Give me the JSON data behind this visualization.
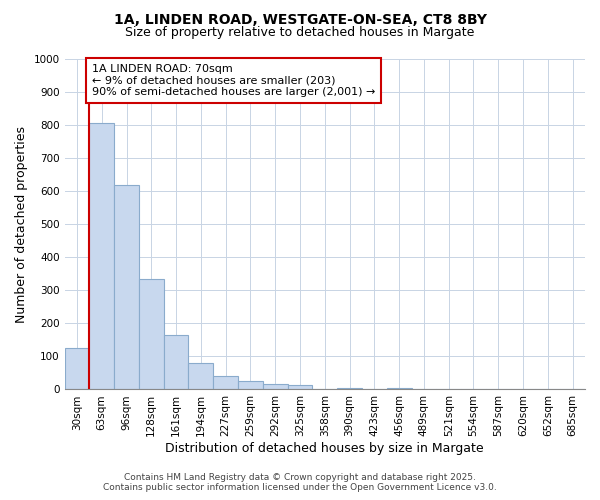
{
  "title_line1": "1A, LINDEN ROAD, WESTGATE-ON-SEA, CT8 8BY",
  "title_line2": "Size of property relative to detached houses in Margate",
  "xlabel": "Distribution of detached houses by size in Margate",
  "ylabel": "Number of detached properties",
  "bar_color": "#c8d8ee",
  "bar_edge_color": "#8aabcc",
  "grid_color": "#c8d4e4",
  "background_color": "#ffffff",
  "bins": [
    "30sqm",
    "63sqm",
    "96sqm",
    "128sqm",
    "161sqm",
    "194sqm",
    "227sqm",
    "259sqm",
    "292sqm",
    "325sqm",
    "358sqm",
    "390sqm",
    "423sqm",
    "456sqm",
    "489sqm",
    "521sqm",
    "554sqm",
    "587sqm",
    "620sqm",
    "652sqm",
    "685sqm"
  ],
  "values": [
    125,
    805,
    620,
    335,
    165,
    80,
    40,
    27,
    18,
    13,
    0,
    5,
    0,
    5,
    0,
    0,
    0,
    0,
    0,
    0,
    0
  ],
  "ylim": [
    0,
    1000
  ],
  "yticks": [
    0,
    100,
    200,
    300,
    400,
    500,
    600,
    700,
    800,
    900,
    1000
  ],
  "property_line_color": "#cc0000",
  "annotation_text": "1A LINDEN ROAD: 70sqm\n← 9% of detached houses are smaller (203)\n90% of semi-detached houses are larger (2,001) →",
  "annotation_box_facecolor": "#ffffff",
  "annotation_box_edgecolor": "#cc0000",
  "footnote_line1": "Contains HM Land Registry data © Crown copyright and database right 2025.",
  "footnote_line2": "Contains public sector information licensed under the Open Government Licence v3.0.",
  "title_fontsize": 10,
  "subtitle_fontsize": 9,
  "tick_fontsize": 7.5,
  "axis_label_fontsize": 9,
  "annotation_fontsize": 8,
  "footnote_fontsize": 6.5
}
